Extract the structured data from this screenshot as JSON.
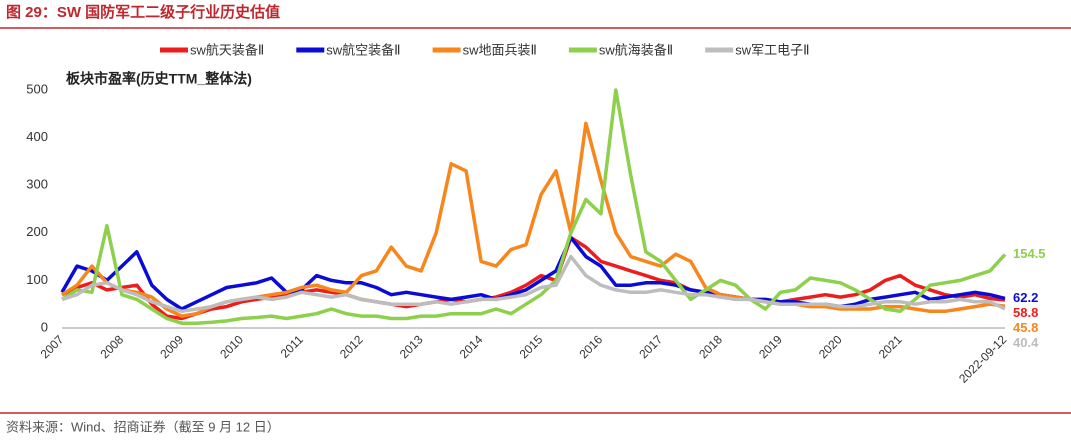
{
  "header": {
    "title": "图 29：SW 国防军工二级子行业历史估值"
  },
  "footer": {
    "source": "资料来源：Wind、招商证券（截至 9 月 12 日）"
  },
  "chart_data": {
    "type": "line",
    "subtitle": "板块市盈率(历史TTM_整体法)",
    "categories": [
      "2007",
      null,
      null,
      null,
      "2008",
      null,
      null,
      null,
      "2009",
      null,
      null,
      null,
      "2010",
      null,
      null,
      null,
      "2011",
      null,
      null,
      null,
      "2012",
      null,
      null,
      null,
      "2013",
      null,
      null,
      null,
      "2014",
      null,
      null,
      null,
      "2015",
      null,
      null,
      null,
      "2016",
      null,
      null,
      null,
      "2017",
      null,
      null,
      null,
      "2018",
      null,
      null,
      null,
      "2019",
      null,
      null,
      null,
      "2020",
      null,
      null,
      null,
      "2021",
      null,
      null,
      null,
      null,
      null,
      null,
      "2022-09-12"
    ],
    "ylim": [
      0,
      500
    ],
    "yticks": [
      0,
      100,
      200,
      300,
      400,
      500
    ],
    "grid": false,
    "series": [
      {
        "name": "sw航天装备Ⅱ",
        "color": "#ee1c1c",
        "values": [
          70,
          85,
          95,
          80,
          85,
          90,
          50,
          25,
          20,
          30,
          40,
          45,
          55,
          60,
          65,
          70,
          75,
          80,
          75,
          70,
          60,
          55,
          50,
          45,
          50,
          55,
          60,
          55,
          60,
          65,
          75,
          90,
          110,
          100,
          190,
          170,
          140,
          130,
          120,
          110,
          100,
          95,
          80,
          75,
          70,
          65,
          60,
          55,
          55,
          60,
          65,
          70,
          65,
          70,
          80,
          100,
          110,
          90,
          80,
          70,
          65,
          70,
          62,
          58.8
        ]
      },
      {
        "name": "sw航空装备Ⅱ",
        "color": "#0b0bd8",
        "values": [
          75,
          130,
          120,
          100,
          130,
          160,
          90,
          60,
          40,
          55,
          70,
          85,
          90,
          95,
          105,
          75,
          80,
          110,
          100,
          95,
          95,
          85,
          70,
          75,
          70,
          65,
          60,
          65,
          70,
          60,
          70,
          80,
          100,
          120,
          190,
          150,
          130,
          90,
          90,
          95,
          95,
          90,
          80,
          75,
          70,
          65,
          60,
          60,
          55,
          55,
          50,
          50,
          45,
          50,
          60,
          65,
          70,
          75,
          60,
          65,
          70,
          75,
          70,
          62.2
        ]
      },
      {
        "name": "sw地面兵装Ⅱ",
        "color": "#f7861d",
        "values": [
          70,
          90,
          130,
          95,
          80,
          75,
          65,
          40,
          25,
          30,
          45,
          55,
          60,
          65,
          70,
          75,
          85,
          90,
          80,
          75,
          110,
          120,
          170,
          130,
          120,
          200,
          345,
          330,
          140,
          130,
          165,
          175,
          280,
          330,
          200,
          430,
          310,
          200,
          150,
          140,
          130,
          155,
          140,
          85,
          70,
          65,
          60,
          55,
          50,
          50,
          45,
          45,
          40,
          40,
          40,
          45,
          45,
          40,
          35,
          35,
          40,
          45,
          50,
          45.8
        ]
      },
      {
        "name": "sw航海装备Ⅱ",
        "color": "#8dd04c",
        "values": [
          60,
          80,
          75,
          215,
          70,
          60,
          40,
          20,
          10,
          10,
          12,
          15,
          20,
          22,
          25,
          20,
          25,
          30,
          40,
          30,
          25,
          25,
          20,
          20,
          25,
          25,
          30,
          30,
          30,
          40,
          30,
          50,
          70,
          100,
          200,
          270,
          240,
          500,
          320,
          160,
          140,
          100,
          60,
          80,
          100,
          90,
          60,
          40,
          75,
          80,
          105,
          100,
          95,
          80,
          60,
          40,
          35,
          60,
          90,
          95,
          100,
          110,
          120,
          154.5
        ]
      },
      {
        "name": "sw军工电子Ⅱ",
        "color": "#bdbdbd",
        "values": [
          60,
          70,
          90,
          95,
          80,
          70,
          55,
          45,
          35,
          40,
          45,
          55,
          60,
          65,
          60,
          65,
          75,
          70,
          65,
          70,
          60,
          55,
          50,
          50,
          50,
          55,
          50,
          55,
          60,
          60,
          65,
          70,
          85,
          90,
          150,
          110,
          90,
          80,
          75,
          75,
          80,
          75,
          70,
          70,
          65,
          60,
          60,
          55,
          50,
          50,
          50,
          50,
          45,
          45,
          50,
          55,
          55,
          50,
          55,
          55,
          60,
          55,
          55,
          40.4
        ]
      }
    ]
  }
}
